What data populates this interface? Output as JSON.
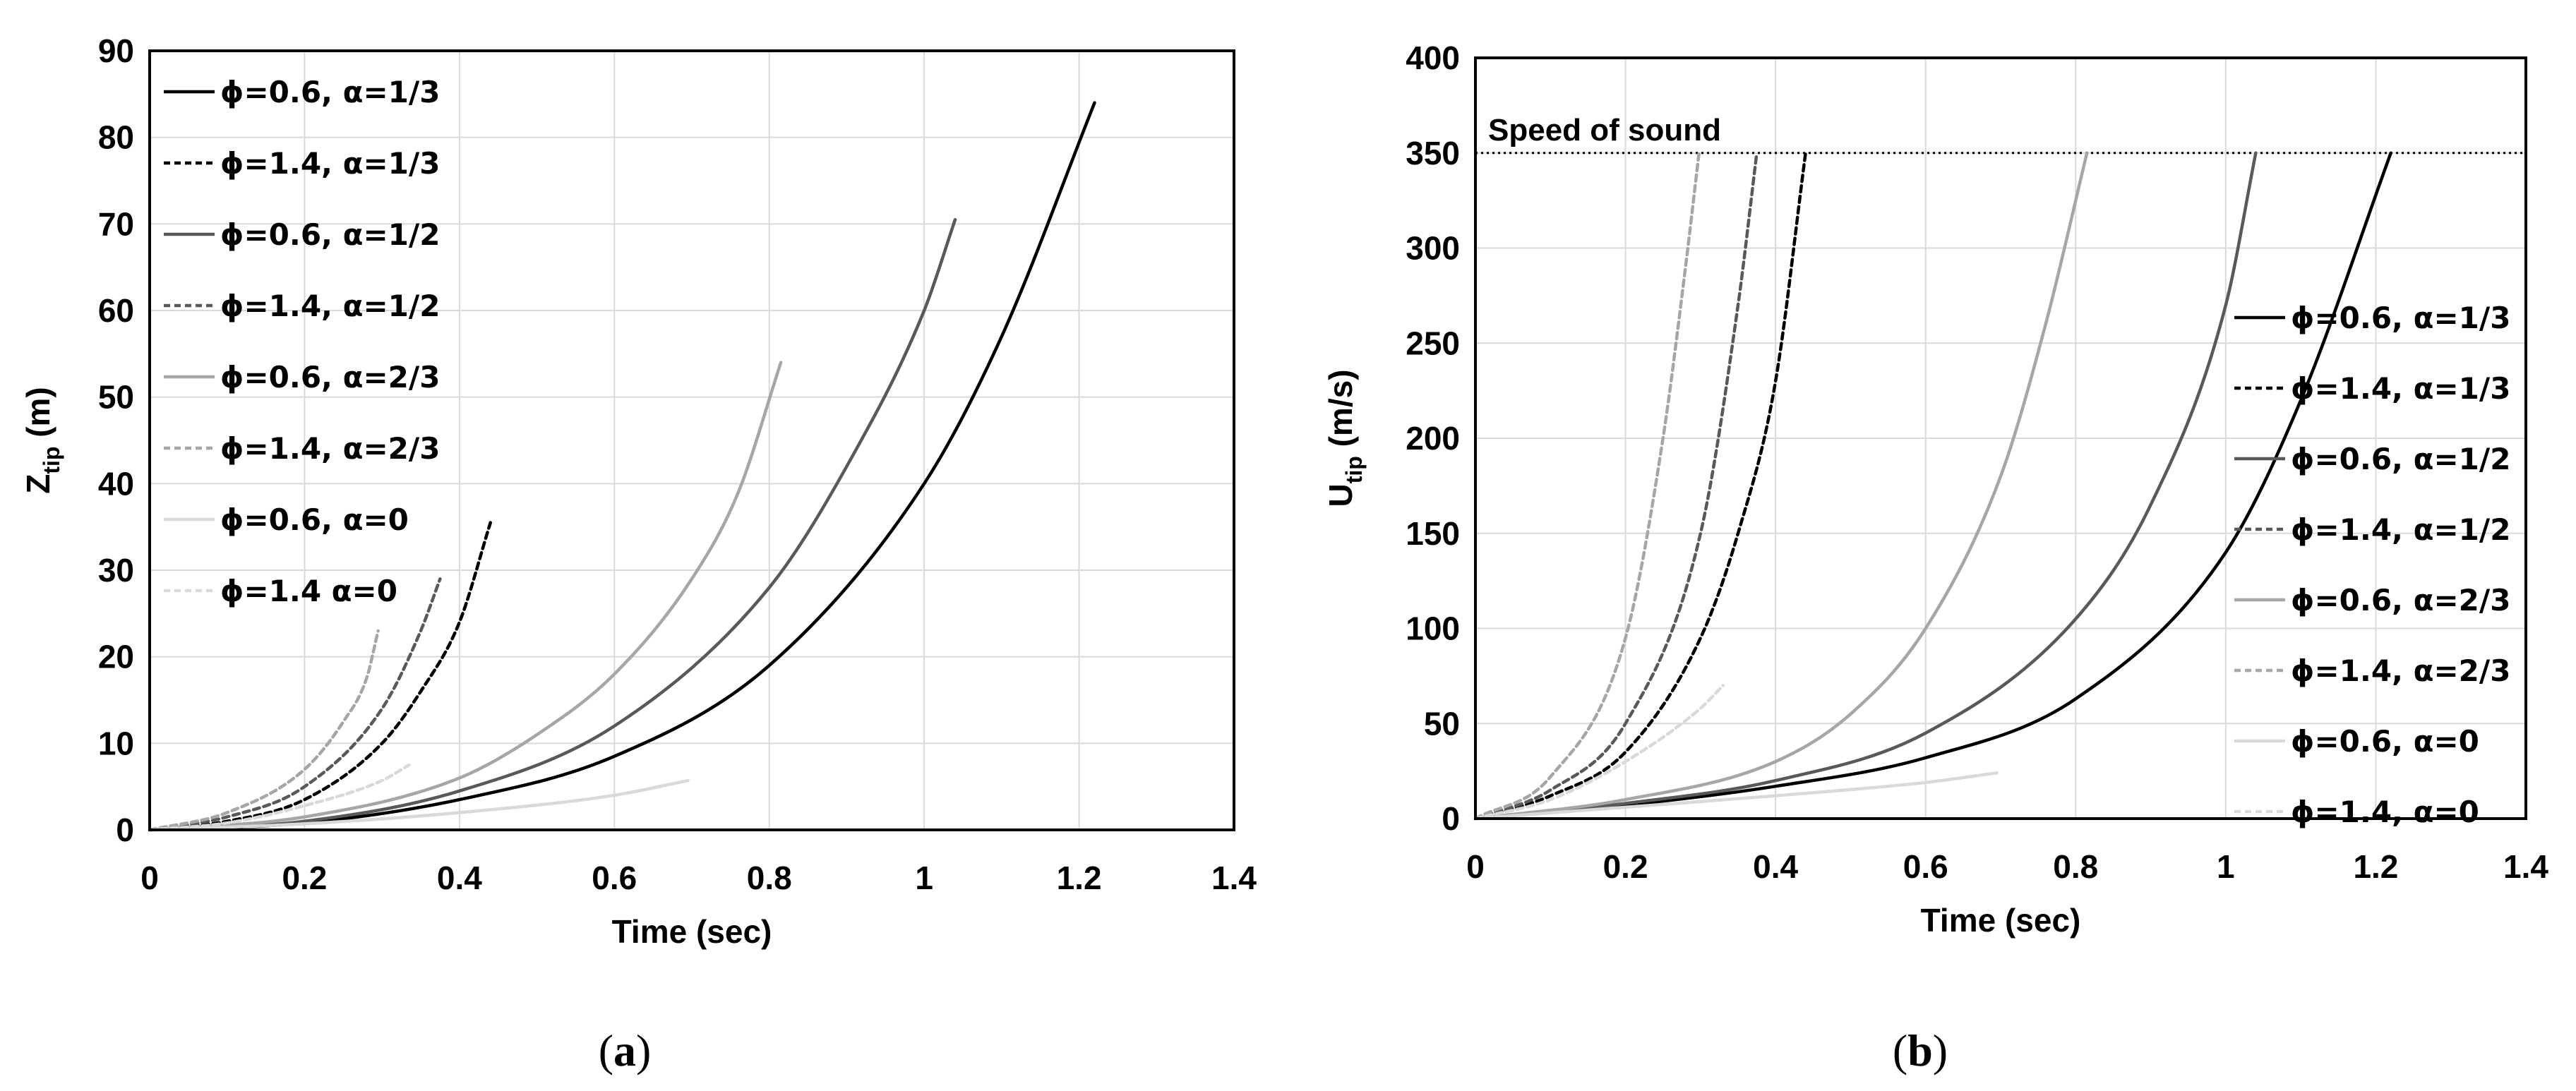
{
  "chart_data": [
    {
      "type": "line",
      "id": "a",
      "panel_label": {
        "open": "(",
        "letter": "a",
        "close": ")"
      },
      "title": "",
      "xlabel": "Time (sec)",
      "ylabel": {
        "main": "Z",
        "sub": "tip",
        "unit": " (m)"
      },
      "xlim": [
        0,
        1.4
      ],
      "ylim": [
        0,
        90
      ],
      "xticks": [
        0,
        0.2,
        0.4,
        0.6,
        0.8,
        1,
        1.2,
        1.4
      ],
      "xtick_labels": [
        "0",
        "0.2",
        "0.4",
        "0.6",
        "0.8",
        "1",
        "1.2",
        "1.4"
      ],
      "yticks": [
        0,
        10,
        20,
        30,
        40,
        50,
        60,
        70,
        80,
        90
      ],
      "ytick_labels": [
        "0",
        "10",
        "20",
        "30",
        "40",
        "50",
        "60",
        "70",
        "80",
        "90"
      ],
      "grid": true,
      "legend_position": "top-left",
      "annotations": [],
      "series": [
        {
          "name": "ϕ=0.6, α=1/3",
          "style": "solid-black",
          "x": [
            0,
            0.2,
            0.4,
            0.6,
            0.8,
            1.0,
            1.1,
            1.22
          ],
          "y": [
            0,
            0.8,
            3.5,
            8.5,
            19,
            40,
            57,
            84
          ]
        },
        {
          "name": "ϕ=1.4, α=1/3",
          "style": "dashed-black",
          "x": [
            0,
            0.1,
            0.2,
            0.3,
            0.35,
            0.4,
            0.44
          ],
          "y": [
            0,
            1,
            3.5,
            10,
            16,
            24,
            35.5
          ]
        },
        {
          "name": "ϕ=0.6, α=1/2",
          "style": "solid-darkgray",
          "x": [
            0,
            0.2,
            0.4,
            0.6,
            0.8,
            0.9,
            1.0,
            1.04
          ],
          "y": [
            0,
            1,
            4.5,
            12,
            28,
            42,
            60,
            70.5
          ]
        },
        {
          "name": "ϕ=1.4, α=1/2",
          "style": "dashed-darkgray",
          "x": [
            0,
            0.1,
            0.2,
            0.3,
            0.35,
            0.375
          ],
          "y": [
            0,
            1.5,
            5,
            14,
            23,
            29
          ]
        },
        {
          "name": "ϕ=0.6, α=2/3",
          "style": "solid-midgray",
          "x": [
            0,
            0.2,
            0.4,
            0.5,
            0.6,
            0.7,
            0.76,
            0.815
          ],
          "y": [
            0,
            1.5,
            6,
            11,
            18,
            29,
            39,
            54
          ]
        },
        {
          "name": "ϕ=1.4, α=2/3",
          "style": "dashed-midgray",
          "x": [
            0,
            0.1,
            0.2,
            0.25,
            0.28,
            0.295
          ],
          "y": [
            0,
            2,
            7,
            12.5,
            17.5,
            23
          ]
        },
        {
          "name": "ϕ=0.6, α=0",
          "style": "solid-lightgray",
          "x": [
            0,
            0.2,
            0.4,
            0.6,
            0.695
          ],
          "y": [
            0,
            0.7,
            2,
            4,
            5.7
          ]
        },
        {
          "name": "ϕ=1.4 α=0",
          "style": "dashed-lightgray",
          "x": [
            0,
            0.1,
            0.2,
            0.3,
            0.335
          ],
          "y": [
            0,
            0.8,
            2.8,
            5.7,
            7.5
          ]
        }
      ]
    },
    {
      "type": "line",
      "id": "b",
      "panel_label": {
        "open": "(",
        "letter": "b",
        "close": ")"
      },
      "title": "",
      "xlabel": "Time (sec)",
      "ylabel": {
        "main": "U",
        "sub": "tip",
        "unit": " (m/s)"
      },
      "xlim": [
        0,
        1.4
      ],
      "ylim": [
        0,
        400
      ],
      "xticks": [
        0,
        0.2,
        0.4,
        0.6,
        0.8,
        1,
        1.2,
        1.4
      ],
      "xtick_labels": [
        "0",
        "0.2",
        "0.4",
        "0.6",
        "0.8",
        "1",
        "1.2",
        "1.4"
      ],
      "yticks": [
        0,
        50,
        100,
        150,
        200,
        250,
        300,
        350,
        400
      ],
      "ytick_labels": [
        "0",
        "50",
        "100",
        "150",
        "200",
        "250",
        "300",
        "350",
        "400"
      ],
      "grid": true,
      "legend_position": "right",
      "annotations": [
        {
          "text": "Speed of sound",
          "type": "hline-dotted",
          "y": 350
        }
      ],
      "series": [
        {
          "name": "ϕ=0.6, α=1/3",
          "style": "solid-black",
          "x": [
            0,
            0.2,
            0.4,
            0.6,
            0.8,
            1.0,
            1.1,
            1.22
          ],
          "y": [
            0,
            7,
            17,
            32,
            63,
            140,
            220,
            350
          ]
        },
        {
          "name": "ϕ=1.4, α=1/3",
          "style": "dashed-black",
          "x": [
            0,
            0.1,
            0.2,
            0.3,
            0.35,
            0.4,
            0.44
          ],
          "y": [
            0,
            12,
            35,
            95,
            150,
            230,
            350
          ]
        },
        {
          "name": "ϕ=0.6, α=1/2",
          "style": "solid-darkgray",
          "x": [
            0,
            0.2,
            0.4,
            0.6,
            0.8,
            0.9,
            1.0,
            1.04
          ],
          "y": [
            0,
            8,
            20,
            45,
            105,
            165,
            270,
            350
          ]
        },
        {
          "name": "ϕ=1.4, α=1/2",
          "style": "dashed-darkgray",
          "x": [
            0,
            0.1,
            0.2,
            0.3,
            0.35,
            0.375
          ],
          "y": [
            0,
            15,
            50,
            150,
            270,
            350
          ]
        },
        {
          "name": "ϕ=0.6, α=2/3",
          "style": "solid-midgray",
          "x": [
            0,
            0.2,
            0.4,
            0.5,
            0.6,
            0.7,
            0.76,
            0.815
          ],
          "y": [
            0,
            10,
            30,
            55,
            100,
            180,
            260,
            350
          ]
        },
        {
          "name": "ϕ=1.4, α=2/3",
          "style": "dashed-midgray",
          "x": [
            0,
            0.1,
            0.2,
            0.25,
            0.28,
            0.298
          ],
          "y": [
            0,
            22,
            95,
            200,
            290,
            350
          ]
        },
        {
          "name": "ϕ=0.6, α=0",
          "style": "solid-lightgray",
          "x": [
            0,
            0.2,
            0.4,
            0.6,
            0.695
          ],
          "y": [
            0,
            6,
            12,
            19,
            24
          ]
        },
        {
          "name": "ϕ=1.4, α=0",
          "style": "dashed-lightgray",
          "x": [
            0,
            0.1,
            0.2,
            0.3,
            0.33
          ],
          "y": [
            0,
            10,
            30,
            58,
            70
          ]
        }
      ]
    }
  ]
}
